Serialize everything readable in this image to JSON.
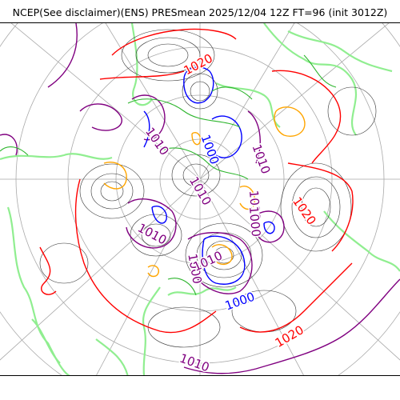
{
  "title": "NCEP(See disclaimer)(ENS) PRESmean 2025/12/04 12Z FT=96 (init 3012Z)",
  "colors": {
    "c1020": "#ff0000",
    "c1010": "#800080",
    "c1000": "#0000ff",
    "warm": "#ffa500",
    "coast": "#90ee90",
    "green": "#2db52d",
    "iso": "#333333",
    "grid": "#a9a9a9"
  },
  "labels": [
    {
      "text": "1020",
      "color": "c1020"
    },
    {
      "text": "1010",
      "color": "c1010"
    },
    {
      "text": "1000",
      "color": "c1000"
    },
    {
      "text": "1010",
      "color": "c1010"
    },
    {
      "text": "1010",
      "color": "c1010"
    },
    {
      "text": "1010",
      "color": "c1010"
    },
    {
      "text": "1000",
      "color": "c1010"
    },
    {
      "text": "1020",
      "color": "c1020"
    },
    {
      "text": "1010",
      "color": "c1010"
    },
    {
      "text": "1000",
      "color": "c1010"
    },
    {
      "text": "1010",
      "color": "c1010"
    },
    {
      "text": "1000",
      "color": "c1000"
    },
    {
      "text": "1020",
      "color": "c1020"
    },
    {
      "text": "1010",
      "color": "c1010"
    }
  ]
}
